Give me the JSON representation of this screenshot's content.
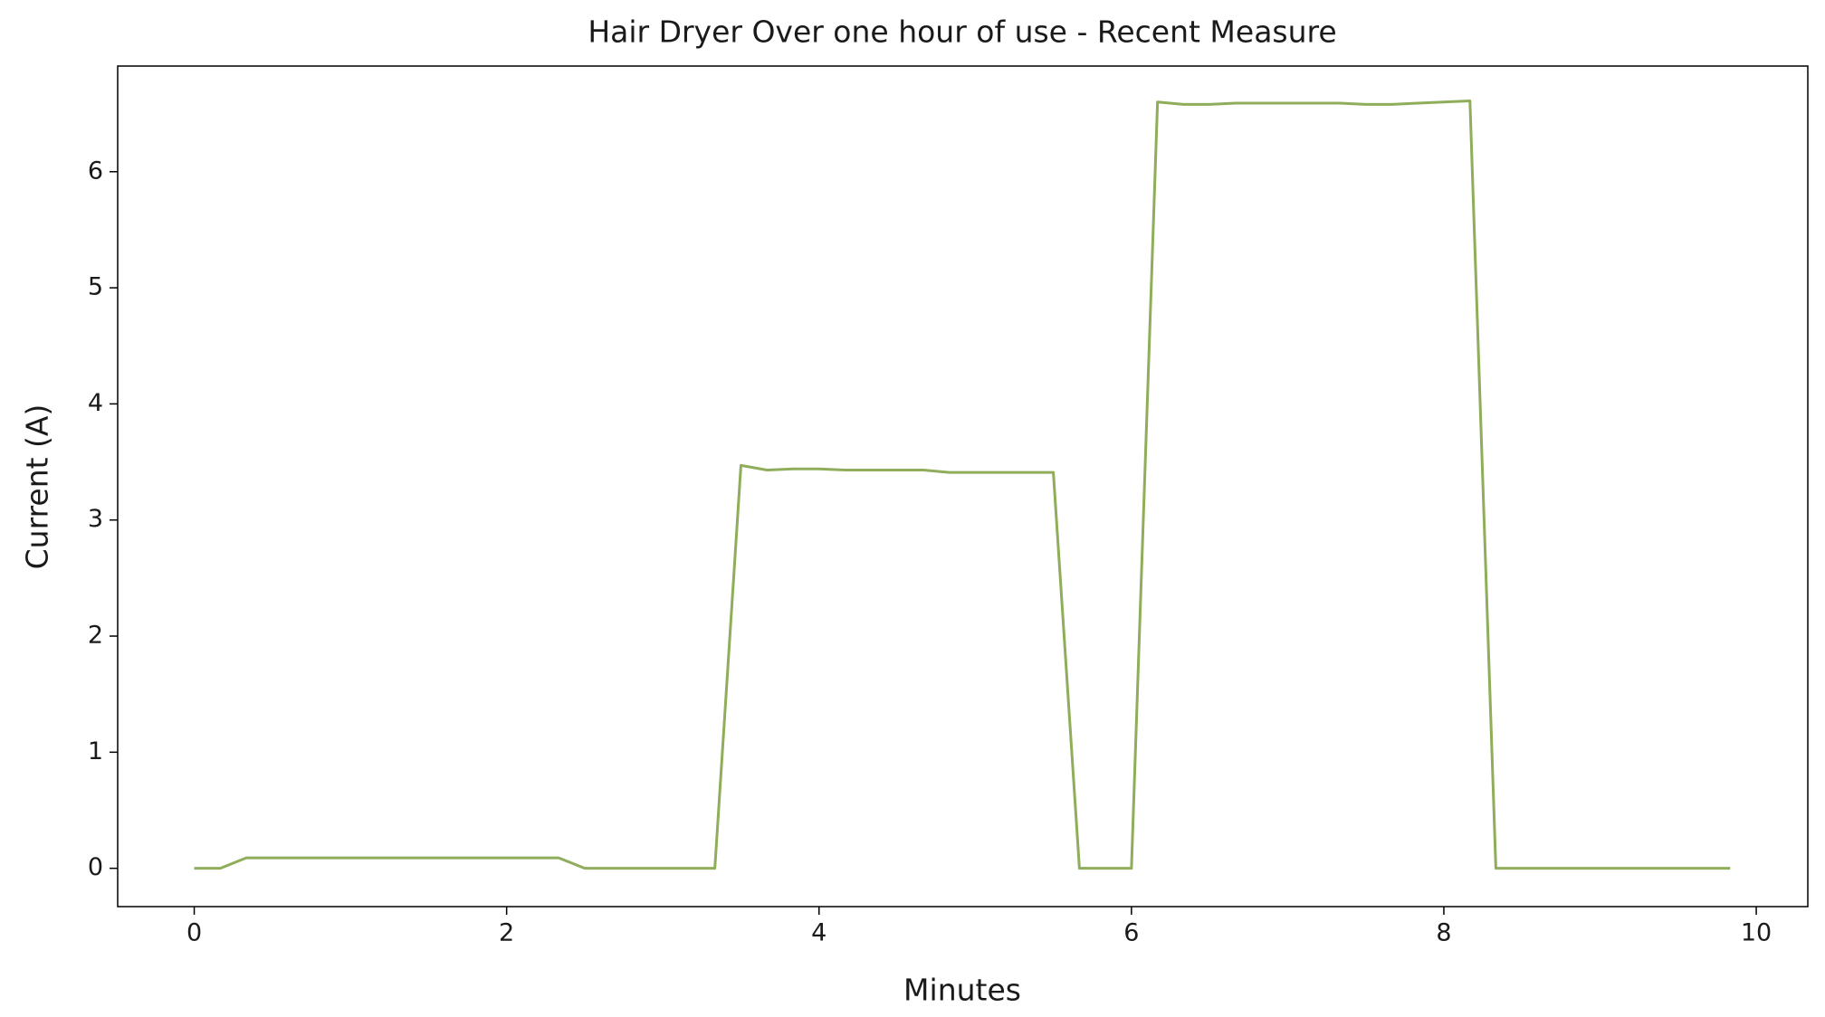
{
  "chart_data": {
    "type": "line",
    "title": "Hair Dryer Over one hour of use - Recent Measure",
    "x_label": "Minutes",
    "y_label": "Current (A)",
    "series": [
      {
        "color": "#8fad5a",
        "x": [
          0,
          0.167,
          0.333,
          0.5,
          0.667,
          0.833,
          1,
          1.167,
          1.333,
          1.5,
          1.667,
          1.833,
          2,
          2.167,
          2.333,
          2.5,
          2.667,
          2.833,
          3,
          3.167,
          3.333,
          3.5,
          3.667,
          3.833,
          4,
          4.167,
          4.333,
          4.5,
          4.667,
          4.833,
          5,
          5.167,
          5.333,
          5.5,
          5.667,
          5.833,
          6,
          6.167,
          6.333,
          6.5,
          6.667,
          6.833,
          7,
          7.167,
          7.333,
          7.5,
          7.667,
          7.833,
          8,
          8.167,
          8.333,
          8.5,
          8.667,
          8.833,
          9,
          9.167,
          9.333,
          9.5,
          9.667,
          9.833
        ],
        "values": [
          0,
          0,
          0.09,
          0.09,
          0.09,
          0.09,
          0.09,
          0.09,
          0.09,
          0.09,
          0.09,
          0.09,
          0.09,
          0.09,
          0.09,
          0,
          0,
          0,
          0,
          0,
          0,
          3.47,
          3.43,
          3.44,
          3.44,
          3.43,
          3.43,
          3.43,
          3.43,
          3.41,
          3.41,
          3.41,
          3.41,
          3.41,
          0,
          0,
          0,
          6.6,
          6.58,
          6.58,
          6.59,
          6.59,
          6.59,
          6.59,
          6.59,
          6.58,
          6.58,
          6.59,
          6.6,
          6.61,
          0,
          0,
          0,
          0,
          0,
          0,
          0,
          0,
          0,
          0
        ]
      }
    ],
    "xlim": [
      -0.49,
      10.33
    ],
    "xticks": [
      0,
      2,
      4,
      6,
      8,
      10
    ],
    "ylim": [
      -0.33,
      6.91
    ],
    "yticks": [
      0,
      1,
      2,
      3,
      4,
      5,
      6
    ],
    "grid": false
  }
}
